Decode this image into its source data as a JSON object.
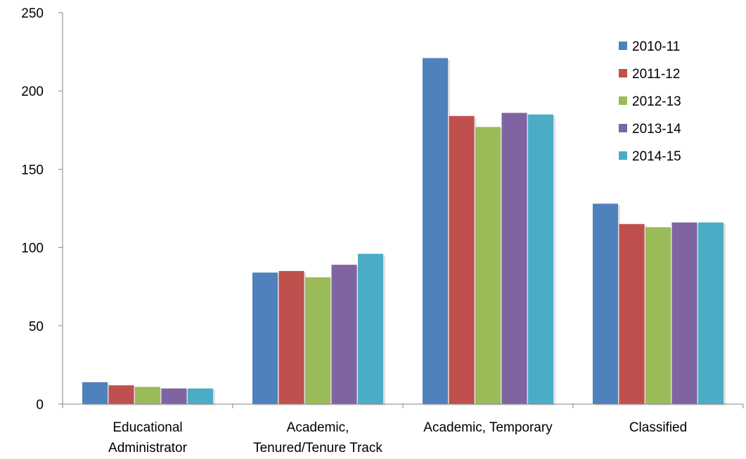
{
  "chart_data": {
    "type": "bar",
    "title": "",
    "xlabel": "",
    "ylabel": "",
    "ylim": [
      0,
      250
    ],
    "yticks": [
      0,
      50,
      100,
      150,
      200,
      250
    ],
    "grid": false,
    "legend_position": "top-right",
    "categories": [
      [
        "Educational",
        "Administrator"
      ],
      [
        "Academic,",
        "Tenured/Tenure Track"
      ],
      [
        "Academic, Temporary"
      ],
      [
        "Classified"
      ]
    ],
    "series": [
      {
        "name": "2010-11",
        "color": "#4f81bd",
        "values": [
          14,
          84,
          221,
          128
        ]
      },
      {
        "name": "2011-12",
        "color": "#c0504d",
        "values": [
          12,
          85,
          184,
          115
        ]
      },
      {
        "name": "2012-13",
        "color": "#9bbb59",
        "values": [
          11,
          81,
          177,
          113
        ]
      },
      {
        "name": "2013-14",
        "color": "#8064a2",
        "values": [
          10,
          89,
          186,
          116
        ]
      },
      {
        "name": "2014-15",
        "color": "#4bacc6",
        "values": [
          10,
          96,
          185,
          116
        ]
      }
    ]
  }
}
